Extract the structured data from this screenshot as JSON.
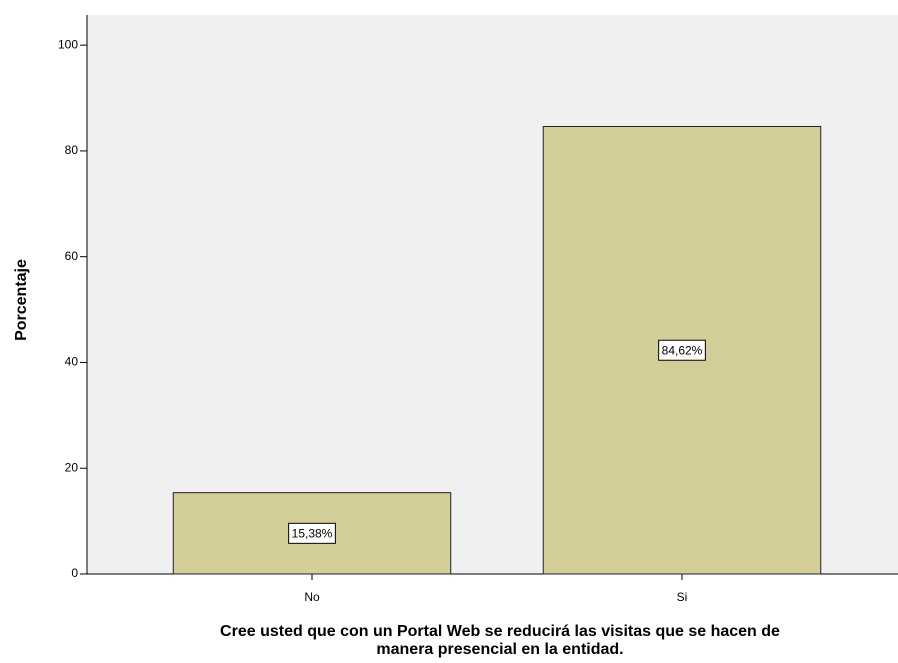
{
  "chart_data": {
    "type": "bar",
    "categories": [
      "No",
      "Si"
    ],
    "values": [
      15.38,
      84.62
    ],
    "value_labels": [
      "15,38%",
      "84,62%"
    ],
    "color": "#d3ce97",
    "ylabel": "Porcentaje",
    "xlabel": [
      "Cree usted que con un Portal Web se reducirá las visitas que se hacen de",
      "manera presencial en la entidad."
    ],
    "ylim": [
      0,
      105.7
    ],
    "yticks": [
      0,
      20,
      40,
      60,
      80,
      100
    ],
    "grid": false
  }
}
